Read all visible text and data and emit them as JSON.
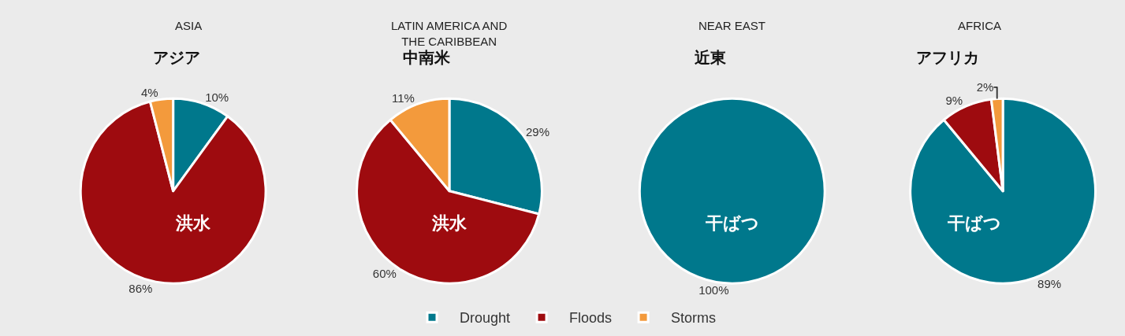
{
  "chart_data": [
    {
      "type": "pie",
      "title": "ASIA",
      "subtitle": "アジア",
      "categories": [
        "Drought",
        "Floods",
        "Storms"
      ],
      "values": [
        10,
        86,
        4
      ],
      "value_labels": [
        "10%",
        "86%",
        "4%"
      ],
      "colors": [
        "#00788c",
        "#9e0b0f",
        "#f39a3c"
      ],
      "annotations": [
        "洪水"
      ],
      "legend": "bottom"
    },
    {
      "type": "pie",
      "title": "LATIN AMERICA AND THE CARIBBEAN",
      "subtitle": "中南米",
      "categories": [
        null,
        null,
        null
      ],
      "values": [
        29,
        60,
        11
      ],
      "value_labels": [
        "29%",
        "60%",
        "11%"
      ],
      "colors": [
        "#00788c",
        "#9e0b0f",
        "#f39a3c"
      ],
      "annotations": [
        "洪水"
      ]
    },
    {
      "type": "pie",
      "title": "NEAR EAST",
      "subtitle": "近東",
      "categories": [
        null
      ],
      "values": [
        100
      ],
      "value_labels": [
        "100%"
      ],
      "colors": [
        "#00788c"
      ],
      "annotations": [
        "干ばつ"
      ]
    },
    {
      "type": "pie",
      "title": "AFRICA",
      "subtitle": "アフリカ",
      "categories": [
        null,
        null,
        null
      ],
      "values": [
        89,
        9,
        2
      ],
      "value_labels": [
        "89%",
        "9%",
        "2%"
      ],
      "colors": [
        "#00788c",
        "#9e0b0f",
        "#f39a3c"
      ],
      "annotations": [
        "干ばつ"
      ]
    }
  ]
}
